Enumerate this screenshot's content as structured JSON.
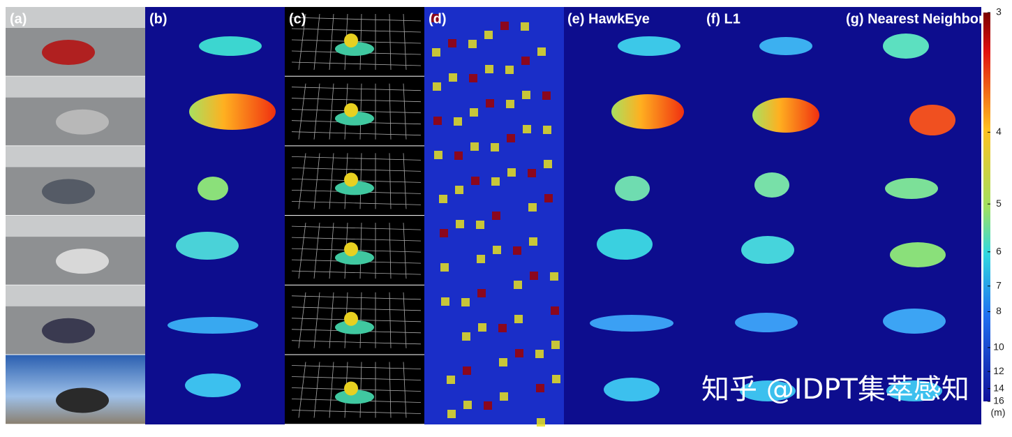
{
  "panels": [
    {
      "label": "(a)"
    },
    {
      "label": "(b)"
    },
    {
      "label": "(c)"
    },
    {
      "label": "(d)"
    },
    {
      "label": "(e) HawkEye"
    },
    {
      "label": "(f) L1"
    },
    {
      "label": "(g) Nearest Neighbor"
    }
  ],
  "colorbar": {
    "ticks": [
      3,
      4,
      5,
      6,
      7,
      8,
      10,
      12,
      14,
      16
    ],
    "range": [
      3,
      16
    ],
    "scale": "reciprocal",
    "unit": "(m)"
  },
  "watermark": "知乎 @IDPT集萃感知"
}
